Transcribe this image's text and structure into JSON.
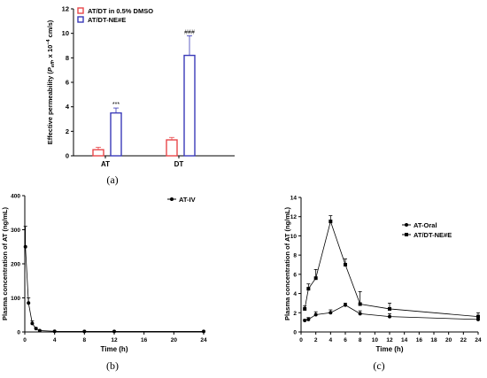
{
  "chart_data": [
    {
      "id": "a",
      "panel_label": "(a)",
      "type": "bar",
      "ylabel": "Effective permeability (P_eff, x 10^-4 cm/s)",
      "ylabel_parts": {
        "main": "Effective permeability (",
        "p": "P",
        "sub": "eff",
        "mid": ", x 10",
        "sup": "−4",
        "end": " cm/s)"
      },
      "ylim": [
        0,
        12
      ],
      "yticks": [
        0,
        2,
        4,
        6,
        8,
        10,
        12
      ],
      "categories": [
        "AT",
        "DT"
      ],
      "colors": {
        "s0": "#e8474a",
        "s1": "#3a3ab8"
      },
      "series": [
        {
          "name": "AT/DT in 0.5% DMSO",
          "values": [
            0.5,
            1.3
          ],
          "errors": [
            0.2,
            0.2
          ],
          "annotations": [
            "",
            ""
          ]
        },
        {
          "name": "AT/DT-NE#E",
          "values": [
            3.5,
            8.2
          ],
          "errors": [
            0.4,
            1.6
          ],
          "annotations": [
            "***",
            "###"
          ]
        }
      ],
      "legend_position": "top-left",
      "grid": false
    },
    {
      "id": "b",
      "panel_label": "(b)",
      "type": "line",
      "xlabel": "Time (h)",
      "ylabel": "Plasma concentration of AT (ng/mL)",
      "xlim": [
        0,
        24
      ],
      "ylim": [
        0,
        400
      ],
      "xticks": [
        0,
        4,
        8,
        12,
        16,
        20,
        24
      ],
      "yticks": [
        0,
        100,
        200,
        300,
        400
      ],
      "series": [
        {
          "name": "AT-IV",
          "marker": "circle",
          "x": [
            0.083,
            0.5,
            1,
            1.5,
            2,
            4,
            8,
            12,
            24
          ],
          "y": [
            250,
            85,
            25,
            10,
            4,
            2,
            1.5,
            1.5,
            1.5
          ],
          "errors": [
            60,
            15,
            8,
            3,
            1,
            0.5,
            0.5,
            0.5,
            0.5
          ]
        }
      ],
      "legend_position": "top-right",
      "grid": false
    },
    {
      "id": "c",
      "panel_label": "(c)",
      "type": "line",
      "xlabel": "Time (h)",
      "ylabel": "Plasma concentration of AT (ng/mL)",
      "xlim": [
        0,
        24
      ],
      "ylim": [
        0,
        14
      ],
      "xticks": [
        0,
        2,
        4,
        6,
        8,
        10,
        12,
        14,
        16,
        18,
        20,
        22,
        24
      ],
      "yticks": [
        0,
        2,
        4,
        6,
        8,
        10,
        12,
        14
      ],
      "series": [
        {
          "name": "AT-Oral",
          "marker": "circle",
          "x": [
            0.5,
            1,
            2,
            4,
            6,
            8,
            12,
            24
          ],
          "y": [
            1.2,
            1.3,
            1.8,
            2.0,
            2.8,
            1.9,
            1.6,
            1.3
          ],
          "errors": [
            0.1,
            0.2,
            0.3,
            0.3,
            0.2,
            0.3,
            0.3,
            0.3
          ]
        },
        {
          "name": "AT/DT-NE#E",
          "marker": "square",
          "x": [
            0.5,
            1,
            2,
            4,
            6,
            8,
            12,
            24
          ],
          "y": [
            2.4,
            4.5,
            5.6,
            11.5,
            7.0,
            2.9,
            2.4,
            1.6
          ],
          "errors": [
            0.3,
            0.5,
            0.9,
            0.6,
            0.6,
            1.3,
            0.6,
            0.4
          ]
        }
      ],
      "legend_position": "top-right",
      "grid": false
    }
  ]
}
